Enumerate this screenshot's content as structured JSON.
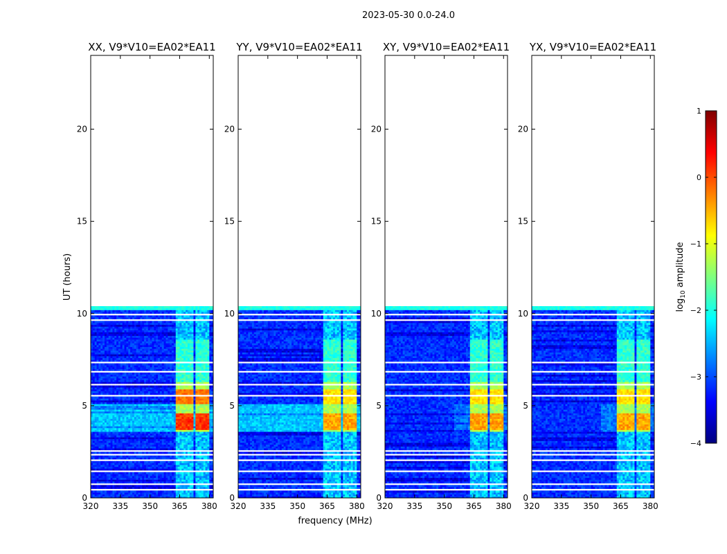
{
  "chart_data": {
    "type": "heatmap",
    "suptitle": "2023-05-30 0.0-24.0",
    "xlabel": "frequency (MHz)",
    "ylabel": "UT (hours)",
    "xlim": [
      320,
      382
    ],
    "ylim": [
      0,
      24
    ],
    "xticks": [
      320,
      335,
      350,
      365,
      380
    ],
    "yticks": [
      0,
      5,
      10,
      15,
      20
    ],
    "data_extent_hours": 10.3,
    "panels": [
      {
        "title": "XX, V9*V10=EA02*EA11",
        "pol": "XX"
      },
      {
        "title": "YY, V9*V10=EA02*EA11",
        "pol": "YY"
      },
      {
        "title": "XY, V9*V10=EA02*EA11",
        "pol": "XY"
      },
      {
        "title": "YX, V9*V10=EA02*EA11",
        "pol": "YX"
      }
    ],
    "colorbar": {
      "label_prefix": "log",
      "label_sub": "10",
      "label_suffix": " amplitude",
      "range": [
        -4,
        1
      ],
      "ticks": [
        {
          "value": 1,
          "label": "1"
        },
        {
          "value": 0,
          "label": "0"
        },
        {
          "value": -1,
          "label": "−1"
        },
        {
          "value": -2,
          "label": "−2"
        },
        {
          "value": -3,
          "label": "−3"
        },
        {
          "value": -4,
          "label": "−4"
        }
      ],
      "colors": [
        "#00007f",
        "#0000ff",
        "#007fff",
        "#00ffff",
        "#7fff7f",
        "#ffff00",
        "#ff7f00",
        "#ff0000",
        "#7f0000"
      ]
    },
    "rfi_channel_bands_mhz": [
      [
        363.5,
        367.5
      ],
      [
        368.5,
        371.5
      ],
      [
        373.0,
        376.5
      ],
      [
        377.5,
        380.0
      ]
    ],
    "flagged_rows_hours": [
      0.45,
      0.75,
      1.45,
      2.05,
      2.35,
      2.55,
      3.1,
      3.4,
      3.5,
      4.9,
      5.55,
      6.15,
      6.85,
      7.35,
      7.5,
      8.4,
      9.65,
      9.95,
      10.2
    ]
  }
}
